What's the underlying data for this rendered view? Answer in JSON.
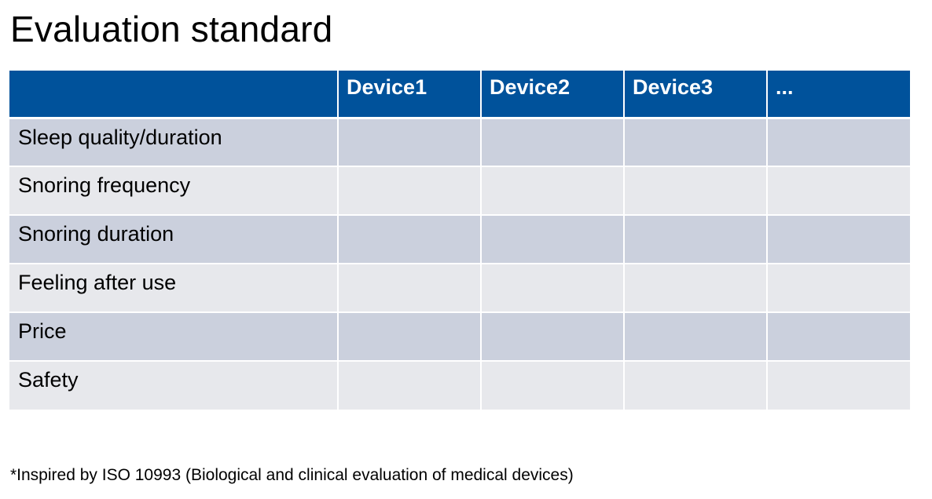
{
  "slide": {
    "title": "Evaluation standard"
  },
  "table": {
    "columns": [
      "",
      "Device1",
      "Device2",
      "Device3",
      "..."
    ],
    "rows": [
      {
        "label": "Sleep quality/duration",
        "cells": [
          "",
          "",
          "",
          ""
        ]
      },
      {
        "label": "Snoring frequency",
        "cells": [
          "",
          "",
          "",
          ""
        ]
      },
      {
        "label": "Snoring duration",
        "cells": [
          "",
          "",
          "",
          ""
        ]
      },
      {
        "label": "Feeling after use",
        "cells": [
          "",
          "",
          "",
          ""
        ]
      },
      {
        "label": "Price",
        "cells": [
          "",
          "",
          "",
          ""
        ]
      },
      {
        "label": "Safety",
        "cells": [
          "",
          "",
          "",
          ""
        ]
      }
    ],
    "colors": {
      "header_bg": "#00529b",
      "header_text": "#ffffff",
      "row_dark": "#cbd0dd",
      "row_light": "#e7e8ec"
    }
  },
  "footnote": "*Inspired by ISO 10993 (Biological and clinical evaluation of medical devices)"
}
